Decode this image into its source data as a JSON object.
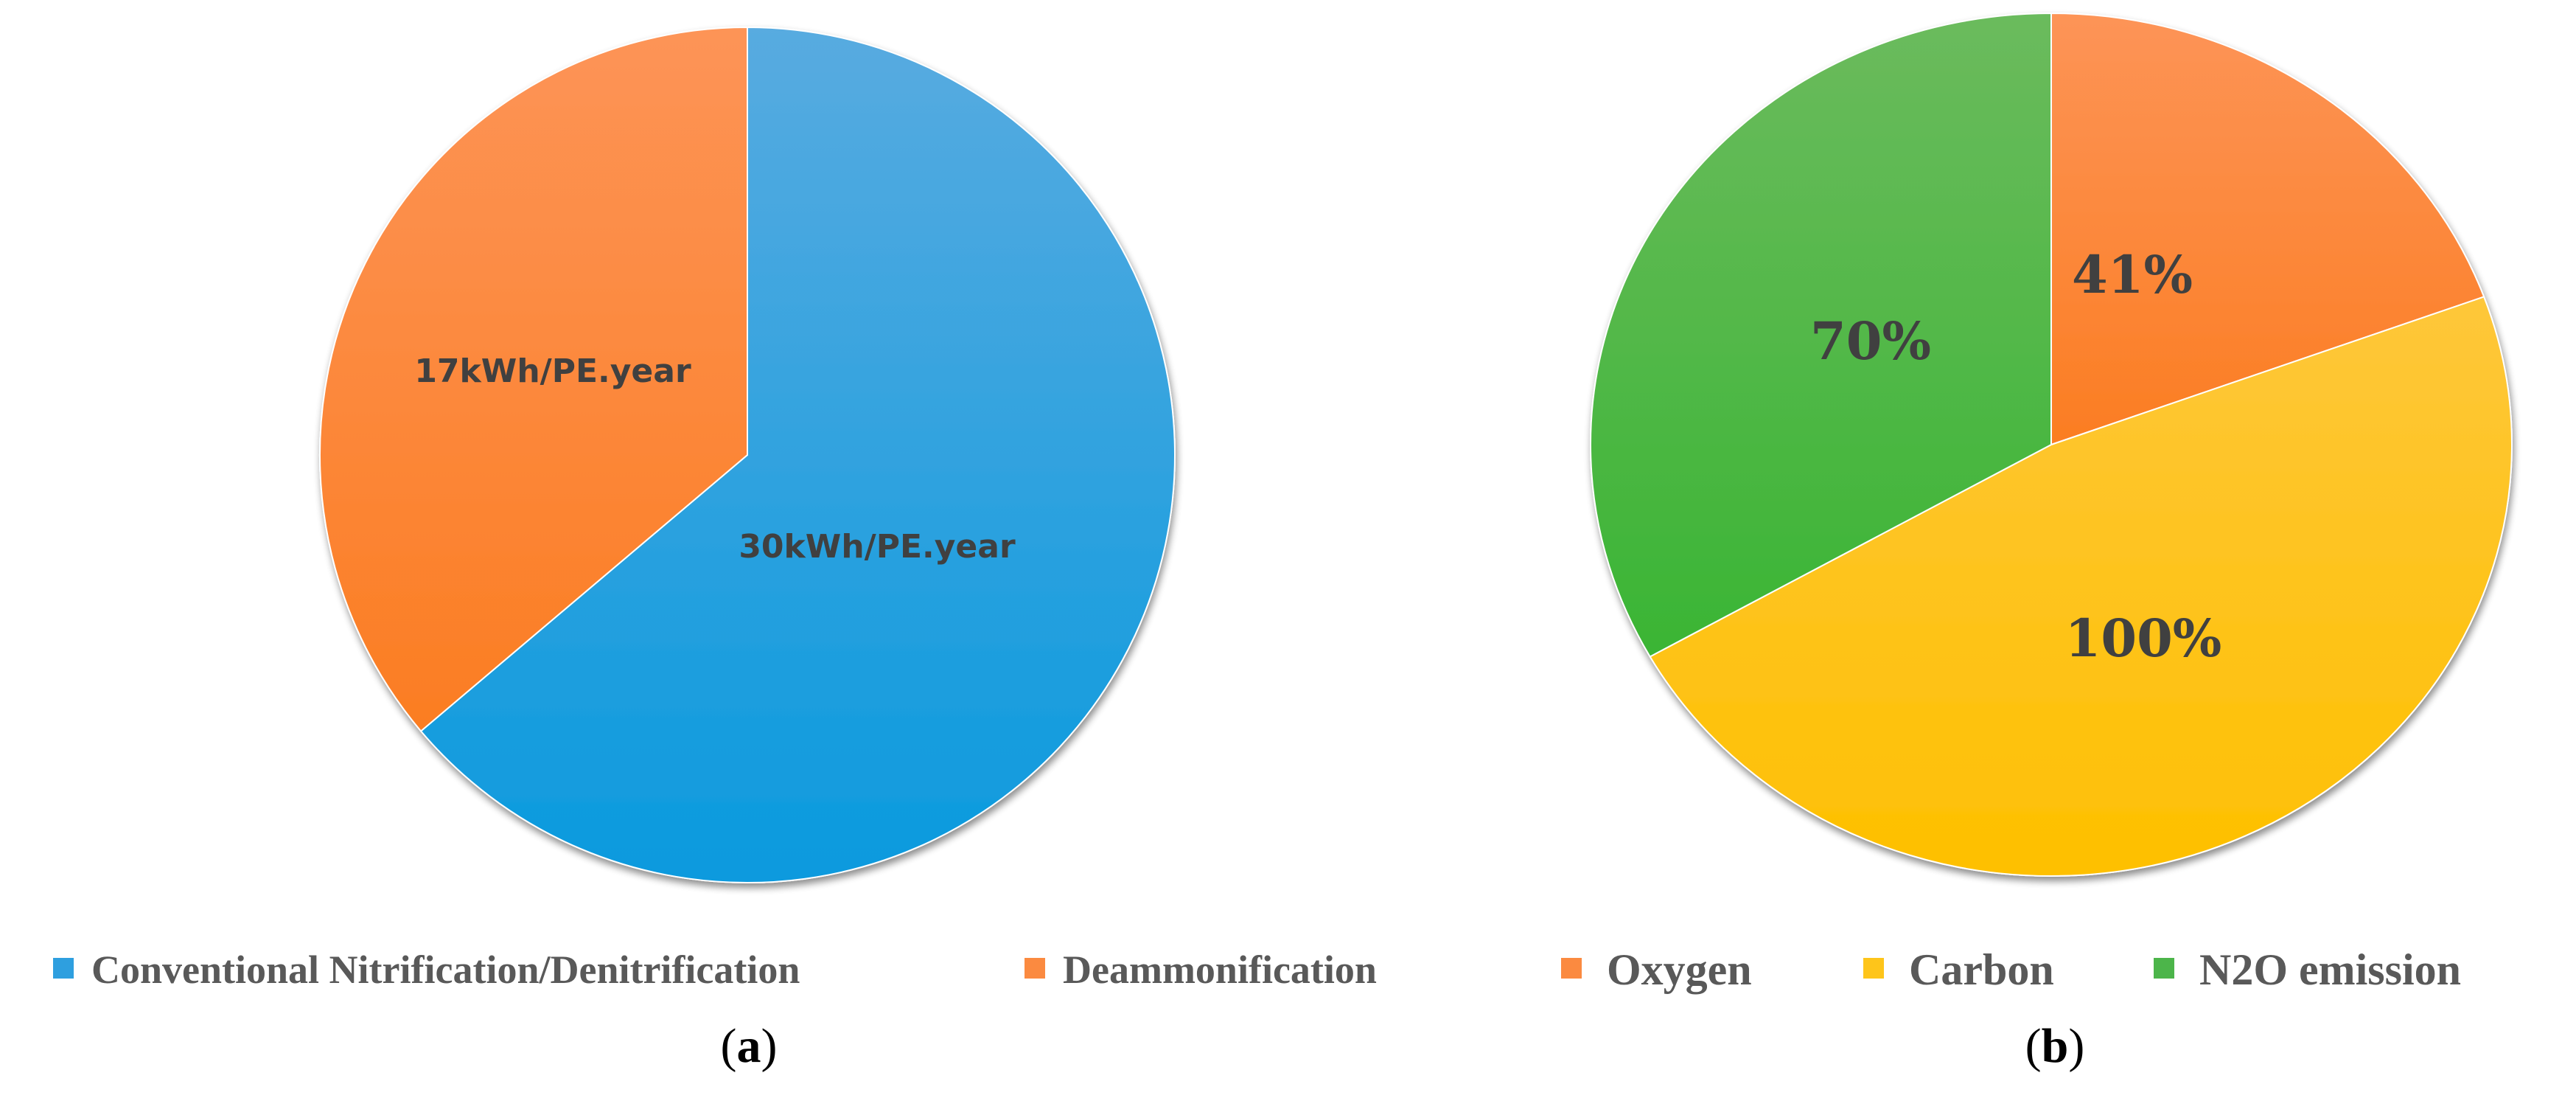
{
  "chart_data": [
    {
      "type": "pie",
      "panel": "a",
      "title": "",
      "slices": [
        {
          "name": "Conventional Nitrification/Denitrification",
          "value": 30,
          "label": "30kWh/PE.year",
          "color": "#2e9fdf"
        },
        {
          "name": "Deammonification",
          "value": 17,
          "label": "17kWh/PE.year",
          "color": "#fb8a40"
        }
      ],
      "legend": [
        "Conventional Nitrification/Denitrification",
        "Deammonification"
      ],
      "legend_position": "bottom",
      "caption": {
        "open": "(",
        "letter": "a",
        "close": ")"
      }
    },
    {
      "type": "pie",
      "panel": "b",
      "title": "",
      "slices": [
        {
          "name": "Oxygen",
          "value": 41,
          "label": "41%",
          "color": "#fb8a40"
        },
        {
          "name": "Carbon",
          "value": 100,
          "label": "100%",
          "color": "#fec51a"
        },
        {
          "name": "N2O emission",
          "value": 70,
          "label": "70%",
          "color": "#4cb54a"
        }
      ],
      "legend": [
        "Oxygen",
        "Carbon",
        "N2O emission"
      ],
      "legend_position": "bottom",
      "caption": {
        "open": "(",
        "letter": "b",
        "close": ")"
      }
    }
  ]
}
